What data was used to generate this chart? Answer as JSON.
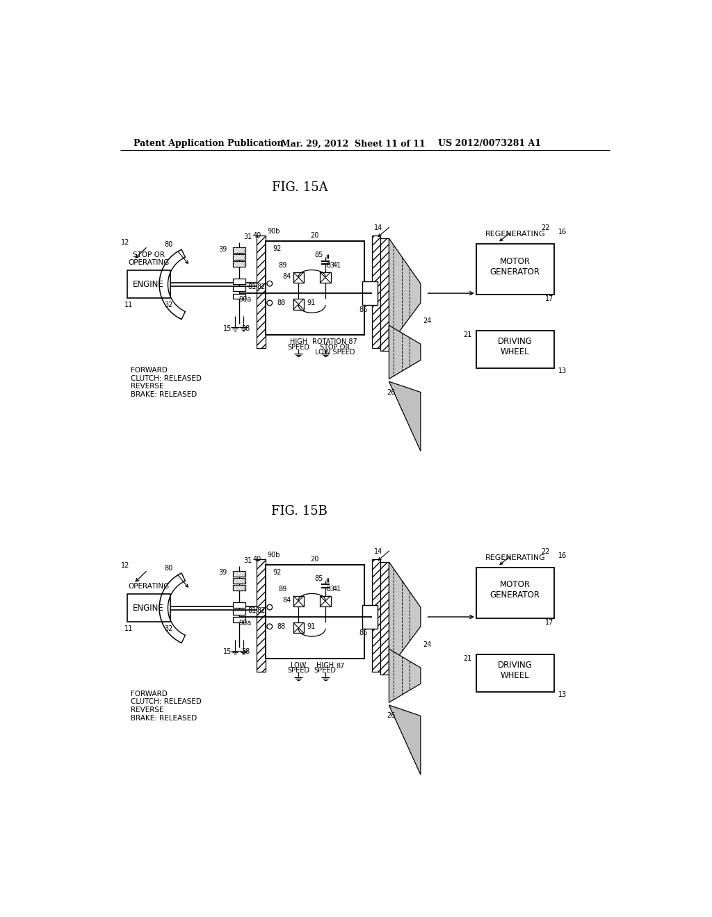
{
  "bg_color": "#ffffff",
  "header_line1": "Patent Application Publication",
  "header_line2": "Mar. 29, 2012  Sheet 11 of 11",
  "header_line3": "US 2012/0073281 A1"
}
